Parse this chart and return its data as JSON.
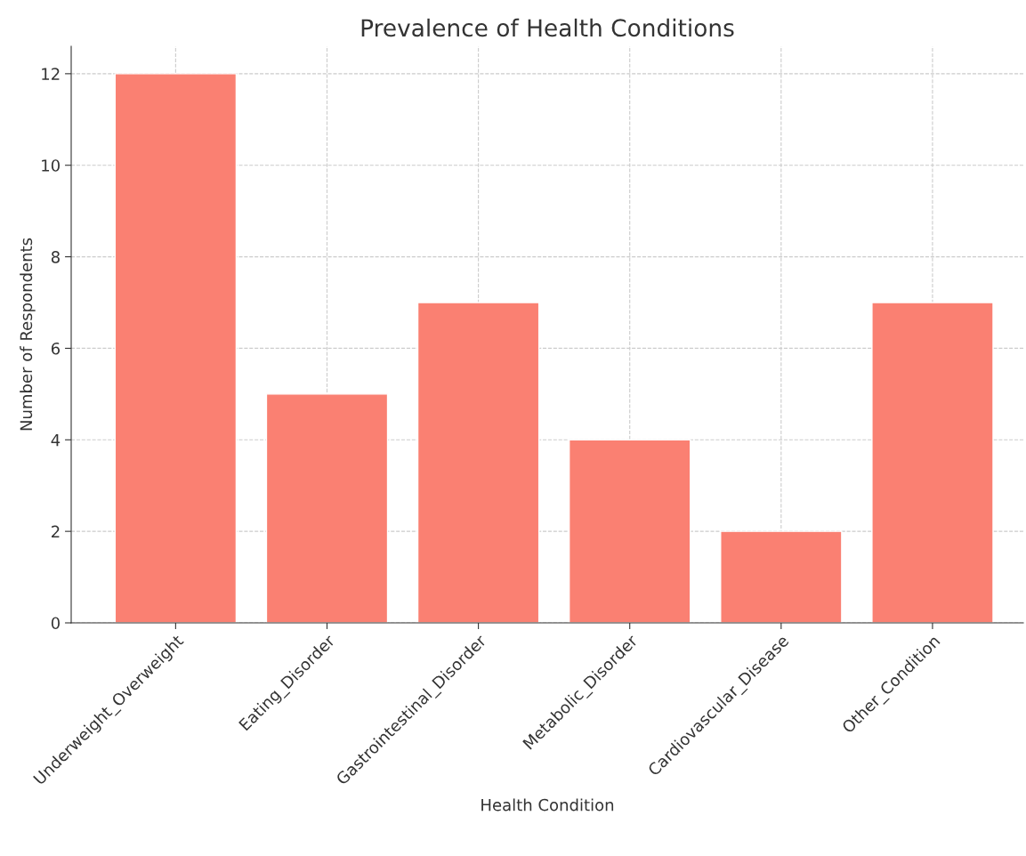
{
  "chart_data": {
    "type": "bar",
    "title": "Prevalence of Health Conditions",
    "xlabel": "Health Condition",
    "ylabel": "Number of Respondents",
    "categories": [
      "Underweight_Overweight",
      "Eating_Disorder",
      "Gastrointestinal_Disorder",
      "Metabolic_Disorder",
      "Cardiovascular_Disease",
      "Other_Condition"
    ],
    "values": [
      12,
      5,
      7,
      4,
      2,
      7
    ],
    "color": "#fa8072",
    "ylim": [
      0,
      12.6
    ],
    "yticks": [
      0,
      2,
      4,
      6,
      8,
      10,
      12
    ],
    "grid": true
  }
}
